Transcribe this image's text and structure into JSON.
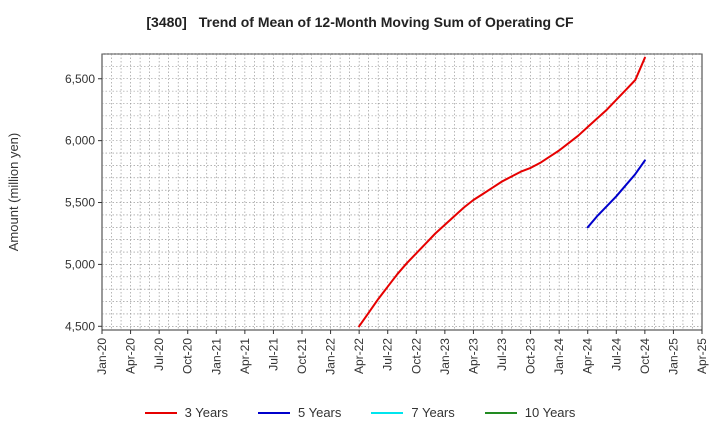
{
  "title": {
    "id": "[3480]",
    "text": "Trend of Mean of 12-Month Moving Sum of Operating CF"
  },
  "colors": {
    "3 Years": "#e60000",
    "5 Years": "#0000cc",
    "7 Years": "#00e5ee",
    "10 Years": "#228b22",
    "grid": "#888888",
    "axis": "#333333"
  },
  "chart_data": {
    "type": "line",
    "title": "[3480]  Trend of Mean of 12-Month Moving Sum of Operating CF",
    "xlabel": "",
    "ylabel": "Amount (million yen)",
    "x_ticks": [
      "Jan-20",
      "Apr-20",
      "Jul-20",
      "Oct-20",
      "Jan-21",
      "Apr-21",
      "Jul-21",
      "Oct-21",
      "Jan-22",
      "Apr-22",
      "Jul-22",
      "Oct-22",
      "Jan-23",
      "Apr-23",
      "Jul-23",
      "Oct-23",
      "Jan-24",
      "Apr-24",
      "Jul-24",
      "Oct-24",
      "Jan-25",
      "Apr-25"
    ],
    "y_ticks": [
      4500,
      5000,
      5500,
      6000,
      6500
    ],
    "y_tick_labels": [
      "4,500",
      "5,000",
      "5,500",
      "6,000",
      "6,500"
    ],
    "xlim": [
      "2020-01",
      "2025-04"
    ],
    "ylim": [
      4470,
      6700
    ],
    "grid": true,
    "legend_position": "bottom",
    "series": [
      {
        "name": "3 Years",
        "x": [
          "2022-04",
          "2022-05",
          "2022-06",
          "2022-07",
          "2022-08",
          "2022-09",
          "2022-10",
          "2022-11",
          "2022-12",
          "2023-01",
          "2023-02",
          "2023-03",
          "2023-04",
          "2023-05",
          "2023-06",
          "2023-07",
          "2023-08",
          "2023-09",
          "2023-10",
          "2023-11",
          "2023-12",
          "2024-01",
          "2024-02",
          "2024-03",
          "2024-04",
          "2024-05",
          "2024-06",
          "2024-07",
          "2024-08",
          "2024-09",
          "2024-10"
        ],
        "values": [
          4500,
          4610,
          4720,
          4820,
          4920,
          5010,
          5090,
          5170,
          5250,
          5320,
          5390,
          5460,
          5520,
          5570,
          5620,
          5670,
          5710,
          5750,
          5780,
          5820,
          5870,
          5920,
          5980,
          6040,
          6110,
          6180,
          6250,
          6330,
          6410,
          6490,
          6670
        ]
      },
      {
        "name": "5 Years",
        "x": [
          "2024-04",
          "2024-05",
          "2024-06",
          "2024-07",
          "2024-08",
          "2024-09",
          "2024-10"
        ],
        "values": [
          5300,
          5390,
          5470,
          5550,
          5640,
          5730,
          5840
        ]
      },
      {
        "name": "7 Years",
        "x": [],
        "values": []
      },
      {
        "name": "10 Years",
        "x": [],
        "values": []
      }
    ]
  }
}
